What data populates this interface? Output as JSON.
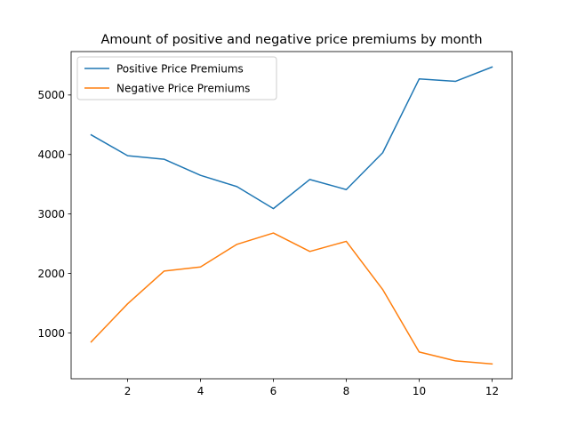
{
  "chart_data": {
    "type": "line",
    "title": "Amount of positive and negative price premiums by month",
    "xlabel": "",
    "ylabel": "",
    "x": [
      1,
      2,
      3,
      4,
      5,
      6,
      7,
      8,
      9,
      10,
      11,
      12
    ],
    "xlim": [
      0.45,
      12.55
    ],
    "ylim": [
      230,
      5730
    ],
    "x_ticks": [
      2,
      4,
      6,
      8,
      10,
      12
    ],
    "y_ticks": [
      1000,
      2000,
      3000,
      4000,
      5000
    ],
    "grid": false,
    "legend_position": "upper-left",
    "series": [
      {
        "name": "Positive Price Premiums",
        "color": "#1f77b4",
        "values": [
          4330,
          3980,
          3920,
          3650,
          3460,
          3090,
          3580,
          3410,
          4030,
          5270,
          5230,
          5470
        ]
      },
      {
        "name": "Negative Price Premiums",
        "color": "#ff7f0e",
        "values": [
          850,
          1490,
          2040,
          2110,
          2490,
          2680,
          2370,
          2540,
          1730,
          680,
          530,
          480
        ]
      }
    ]
  }
}
